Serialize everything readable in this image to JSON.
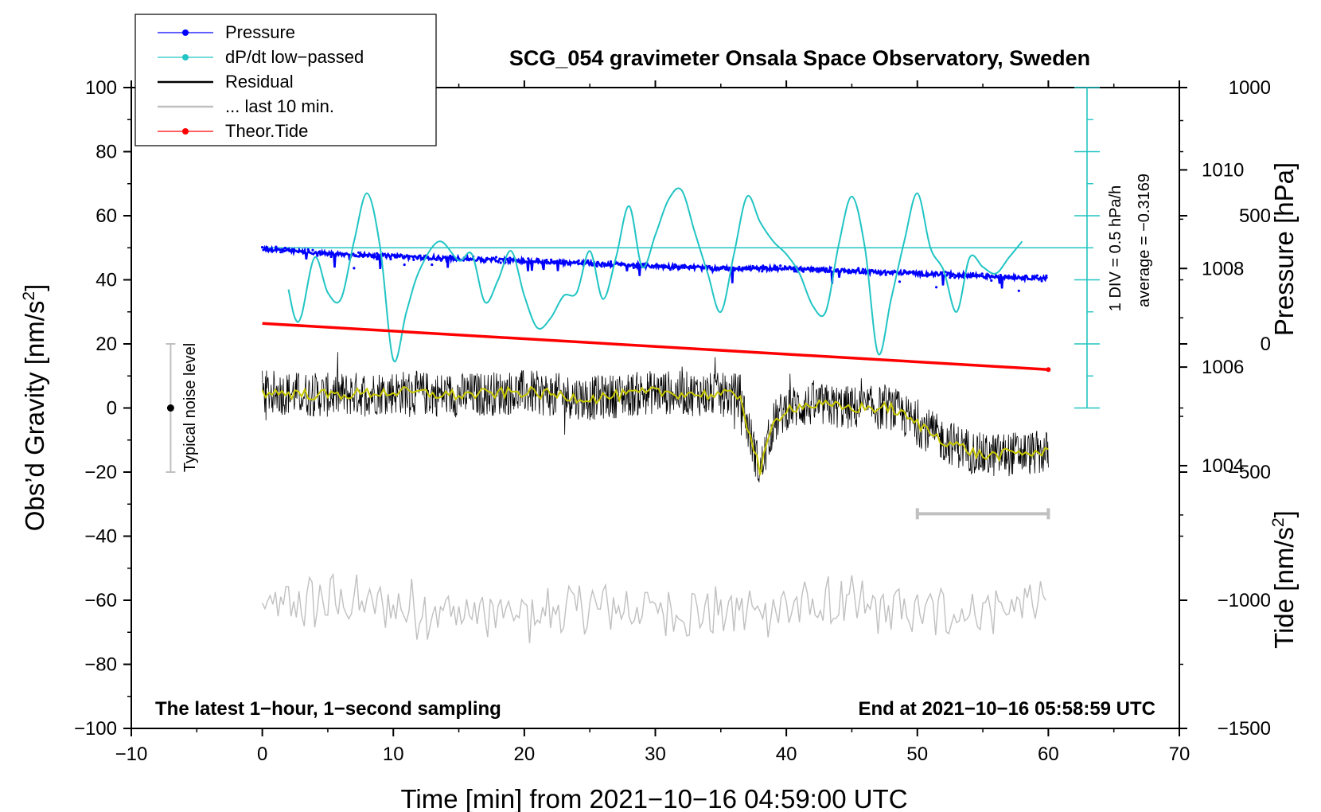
{
  "chart_data": {
    "type": "line",
    "title": "SCG_054 gravimeter Onsala Space Observatory, Sweden",
    "xlabel": "Time [min] from 2021−10−16 04:59:00 UTC",
    "ylabel": "Obs’d Gravity [nm/s",
    "ylabel_sup": "2",
    "ylabel_close": "]",
    "xlim": [
      -10,
      70
    ],
    "ylim": [
      -100,
      100
    ],
    "x_ticks": [
      -10,
      0,
      10,
      20,
      30,
      40,
      50,
      60,
      70
    ],
    "x_tick_labels": [
      "−10",
      "0",
      "10",
      "20",
      "30",
      "40",
      "50",
      "60",
      "70"
    ],
    "y_ticks": [
      -100,
      -80,
      -60,
      -40,
      -20,
      0,
      20,
      40,
      60,
      80,
      100
    ],
    "y_tick_labels": [
      "−100",
      "−80",
      "−60",
      "−40",
      "−20",
      "0",
      "20",
      "40",
      "60",
      "80",
      "100"
    ],
    "pressure_axis": {
      "label": "Pressure [hPa]",
      "ticks": [
        1004,
        1006,
        1008,
        1010
      ],
      "tick_labels": [
        "1004",
        "1006",
        "1008",
        "1010"
      ],
      "lim": [
        998.67,
        1011.67
      ]
    },
    "tide_axis": {
      "label": "Tide [nm/s",
      "label_sup": "2",
      "label_close": "]",
      "ticks": [
        -1500,
        -1000,
        -500,
        0,
        500,
        1000
      ],
      "tick_labels": [
        "−1500",
        "−1000",
        "−500",
        "0",
        "500",
        "1000"
      ],
      "lim": [
        -1500,
        1000
      ]
    },
    "legend": [
      {
        "name": "Pressure",
        "color": "#0000ff",
        "style": "line-dot"
      },
      {
        "name": "dP/dt low−passed",
        "color": "#22c4c4",
        "style": "line-dot"
      },
      {
        "name": "Residual",
        "color": "#000000",
        "style": "line"
      },
      {
        "name": "... last 10 min.",
        "color": "#c0c0c0",
        "style": "line"
      },
      {
        "name": "Theor.Tide",
        "color": "#ff0000",
        "style": "line-dot"
      }
    ],
    "series": [
      {
        "name": "Pressure",
        "axis": "pressure",
        "color": "#0000ff",
        "x": [
          0,
          5,
          10,
          15,
          20,
          25,
          30,
          35,
          40,
          45,
          50,
          55,
          60
        ],
        "values": [
          1008.4,
          1008.3,
          1008.25,
          1008.2,
          1008.15,
          1008.1,
          1008.05,
          1008.0,
          1008.0,
          1007.95,
          1007.9,
          1007.85,
          1007.8
        ]
      },
      {
        "name": "dP/dt low−passed",
        "axis": "gravity",
        "color": "#22c4c4",
        "x": [
          2,
          2.5,
          3,
          4,
          5,
          6,
          7,
          8,
          9,
          10,
          11,
          12,
          13.5,
          15,
          16,
          17,
          18,
          19,
          20,
          21,
          22,
          23,
          24,
          25,
          26,
          27,
          28,
          29,
          30,
          31,
          32,
          33,
          34,
          35,
          36,
          37,
          38,
          39,
          40,
          41,
          42,
          43,
          44,
          45,
          46,
          47,
          48,
          49,
          50,
          51,
          52,
          53,
          54,
          55,
          56,
          57,
          58
        ],
        "values": [
          37,
          28,
          29,
          47,
          36,
          34,
          52,
          67,
          50,
          15,
          30,
          43,
          52,
          46,
          48,
          33,
          40,
          49,
          35,
          25,
          28,
          35,
          36,
          49,
          34,
          47,
          63,
          44,
          54,
          65,
          68,
          55,
          42,
          30,
          48,
          66,
          58,
          52,
          48,
          42,
          32,
          30,
          51,
          66,
          50,
          17,
          34,
          52,
          67,
          50,
          43,
          30,
          47,
          44,
          42,
          47,
          52
        ]
      },
      {
        "name": "Residual",
        "axis": "gravity",
        "color": "#000000",
        "x": [
          0,
          5,
          10,
          15,
          20,
          25,
          30,
          35,
          36.5,
          37,
          38,
          39,
          40,
          42,
          45,
          48,
          50,
          52,
          55,
          58,
          60
        ],
        "values": [
          5,
          4,
          5,
          4,
          5,
          3,
          5,
          4,
          4,
          -5,
          -20,
          -5,
          0,
          1,
          0,
          0,
          -5,
          -10,
          -15,
          -14,
          -14
        ]
      },
      {
        "name": "... last 10 min.",
        "axis": "gravity",
        "color": "#c0c0c0",
        "x": [
          0,
          5,
          10,
          15,
          20,
          25,
          30,
          35,
          40,
          45,
          50,
          55,
          60
        ],
        "values": [
          -63,
          -60,
          -62,
          -64,
          -65,
          -62,
          -63,
          -64,
          -62,
          -62,
          -64,
          -63,
          -60
        ]
      },
      {
        "name": "Theor.Tide",
        "axis": "tide",
        "color": "#ff0000",
        "x": [
          0,
          60
        ],
        "values": [
          80,
          -100
        ]
      }
    ],
    "annotations": {
      "bottom_left": "The latest 1−hour, 1−second sampling",
      "bottom_right": "End at 2021−10−16 05:58:59 UTC",
      "noise_label": "Typical noise level",
      "scale_div": "1 DIV = 0.5 hPa/h",
      "scale_avg": "average = −0.3169"
    },
    "last10_bar_range": [
      50,
      60
    ],
    "noise_bar": {
      "x": -7,
      "range": [
        -20,
        20
      ]
    },
    "zero_line_dpdt": 50
  }
}
